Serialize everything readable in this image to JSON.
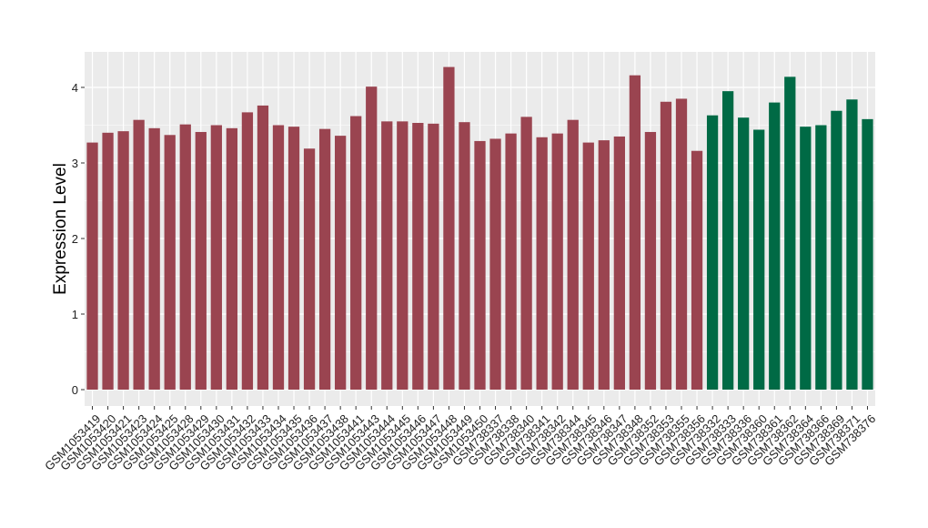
{
  "chart_data": {
    "type": "bar",
    "ylabel": "Expression Level",
    "xlabel": "",
    "title": "",
    "ylim": [
      0,
      4.45
    ],
    "yticks": [
      0,
      1,
      2,
      3,
      4
    ],
    "grid": true,
    "panel_background": "#EBEBEB",
    "grid_color": "#FFFFFF",
    "categories": [
      "GSM1053419",
      "GSM1053420",
      "GSM1053421",
      "GSM1053423",
      "GSM1053424",
      "GSM1053425",
      "GSM1053428",
      "GSM1053429",
      "GSM1053430",
      "GSM1053431",
      "GSM1053432",
      "GSM1053433",
      "GSM1053434",
      "GSM1053435",
      "GSM1053436",
      "GSM1053437",
      "GSM1053438",
      "GSM1053441",
      "GSM1053443",
      "GSM1053444",
      "GSM1053445",
      "GSM1053446",
      "GSM1053447",
      "GSM1053448",
      "GSM1053449",
      "GSM1053450",
      "GSM738337",
      "GSM738338",
      "GSM738340",
      "GSM738341",
      "GSM738342",
      "GSM738344",
      "GSM738345",
      "GSM738346",
      "GSM738347",
      "GSM738348",
      "GSM738352",
      "GSM738353",
      "GSM738355",
      "GSM738356",
      "GSM738332",
      "GSM738333",
      "GSM738336",
      "GSM738360",
      "GSM738361",
      "GSM738362",
      "GSM738364",
      "GSM738366",
      "GSM738369",
      "GSM738371",
      "GSM738376"
    ],
    "values": [
      3.27,
      3.4,
      3.42,
      3.57,
      3.46,
      3.37,
      3.51,
      3.41,
      3.5,
      3.46,
      3.67,
      3.76,
      3.5,
      3.48,
      3.19,
      3.45,
      3.36,
      3.62,
      4.01,
      3.55,
      3.55,
      3.53,
      3.52,
      4.27,
      3.54,
      3.29,
      3.32,
      3.39,
      3.61,
      3.34,
      3.39,
      3.57,
      3.27,
      3.3,
      3.35,
      4.16,
      3.41,
      3.81,
      3.85,
      3.16,
      3.63,
      3.95,
      3.6,
      3.44,
      3.8,
      4.14,
      3.48,
      3.5,
      3.69,
      3.84,
      3.58
    ],
    "bar_colors": {
      "group1": "#9A4450",
      "group2": "#006A45"
    },
    "group_split_index": 40
  }
}
